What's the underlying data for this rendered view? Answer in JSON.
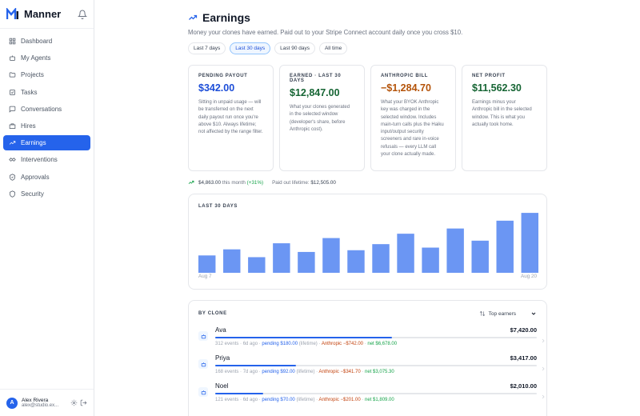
{
  "app": {
    "name": "Manner"
  },
  "nav": [
    {
      "label": "Dashboard",
      "icon": "dashboard-icon"
    },
    {
      "label": "My Agents",
      "icon": "agents-icon"
    },
    {
      "label": "Projects",
      "icon": "folder-icon"
    },
    {
      "label": "Tasks",
      "icon": "tasks-icon"
    },
    {
      "label": "Conversations",
      "icon": "chat-icon"
    },
    {
      "label": "Hires",
      "icon": "hires-icon"
    },
    {
      "label": "Earnings",
      "icon": "trend-icon",
      "active": true
    },
    {
      "label": "Interventions",
      "icon": "handshake-icon"
    },
    {
      "label": "Approvals",
      "icon": "check-shield-icon"
    },
    {
      "label": "Security",
      "icon": "shield-icon"
    }
  ],
  "user": {
    "initial": "A",
    "name": "Alex Rivera",
    "email": "alex@studio.ex..."
  },
  "page": {
    "title": "Earnings",
    "subtitle": "Money your clones have earned. Paid out to your Stripe Connect account daily once you cross $10."
  },
  "ranges": [
    {
      "label": "Last 7 days"
    },
    {
      "label": "Last 30 days",
      "active": true
    },
    {
      "label": "Last 90 days"
    },
    {
      "label": "All time"
    }
  ],
  "cards": [
    {
      "label": "Pending payout",
      "value": "$342.00",
      "color": "#1d4ed8",
      "desc": "Sitting in unpaid usage — will be transferred on the next daily payout run once you're above $10. Always lifetime; not affected by the range filter."
    },
    {
      "label": "Earned · last 30 days",
      "value": "$12,847.00",
      "color": "#166534",
      "desc": "What your clones generated in the selected window (developer's share, before Anthropic cost)."
    },
    {
      "label": "Anthropic bill",
      "value": "−$1,284.70",
      "color": "#b45309",
      "desc": "What your BYOK Anthropic key was charged in the selected window. Includes main-turn calls plus the Haiku input/output security screeners and rare in-voice refusals — every LLM call your clone actually made."
    },
    {
      "label": "Net profit",
      "value": "$11,562.30",
      "color": "#166534",
      "desc": "Earnings minus your Anthropic bill in the selected window. This is what you actually took home."
    }
  ],
  "stats": {
    "month_amount": "$4,863.00",
    "month_text": "this month",
    "month_change": "(+31%)",
    "lifetime_label": "Paid out lifetime:",
    "lifetime_value": "$12,505.00"
  },
  "chart_data": {
    "type": "bar",
    "title": "Last 30 days",
    "x_start_label": "Aug 7",
    "x_end_label": "Aug 20",
    "bar_color": "#6b96f3",
    "values": [
      20,
      27,
      18,
      34,
      24,
      40,
      26,
      33,
      45,
      29,
      51,
      37,
      60,
      69
    ],
    "ylim": [
      0,
      70
    ]
  },
  "clones": {
    "label": "By clone",
    "sort_label": "Top earners",
    "items": [
      {
        "name": "Ava",
        "amount": "$7,420.00",
        "progress": 0.55,
        "meta": "312 events · 6d ago ·",
        "pending": "pending $180.00",
        "pending_note": "(lifetime)",
        "anthropic": "Anthropic −$742.00",
        "net": "net $6,678.00"
      },
      {
        "name": "Priya",
        "amount": "$3,417.00",
        "progress": 0.25,
        "meta": "168 events · 7d ago ·",
        "pending": "pending $92.00",
        "pending_note": "(lifetime)",
        "anthropic": "Anthropic −$341.70",
        "net": "net $3,075.30"
      },
      {
        "name": "Noel",
        "amount": "$2,010.00",
        "progress": 0.15,
        "meta": "121 events · 6d ago ·",
        "pending": "pending $70.00",
        "pending_note": "(lifetime)",
        "anthropic": "Anthropic −$201.00",
        "net": "net $1,809.00"
      }
    ]
  }
}
